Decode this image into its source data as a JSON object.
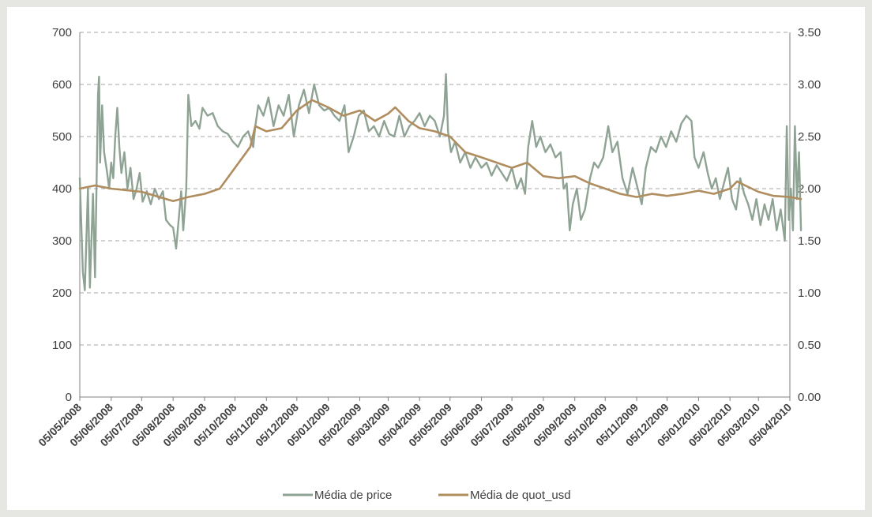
{
  "chart_data": {
    "type": "line",
    "title": "",
    "xlabel": "",
    "ylabel": "",
    "y_left": {
      "range": [
        0,
        700
      ],
      "ticks": [
        "0",
        "100",
        "200",
        "300",
        "400",
        "500",
        "600",
        "700"
      ]
    },
    "y_right": {
      "range": [
        0,
        3.5
      ],
      "ticks": [
        "0.00",
        "0.50",
        "1.00",
        "1.50",
        "2.00",
        "2.50",
        "3.00",
        "3.50"
      ]
    },
    "x_range": [
      "05/05/2008",
      "05/04/2010"
    ],
    "x_ticks": [
      "05/05/2008",
      "05/06/2008",
      "05/07/2008",
      "05/08/2008",
      "05/09/2008",
      "05/10/2008",
      "05/11/2008",
      "05/12/2008",
      "05/01/2009",
      "05/02/2009",
      "05/03/2009",
      "05/04/2009",
      "05/05/2009",
      "05/06/2009",
      "05/07/2009",
      "05/08/2009",
      "05/09/2009",
      "05/10/2009",
      "05/11/2009",
      "05/12/2009",
      "05/01/2010",
      "05/02/2010",
      "05/03/2010",
      "05/04/2010"
    ],
    "grid": "horizontal dashed",
    "legend_position": "bottom",
    "series": [
      {
        "name": "Média de price",
        "axis": "left",
        "color": "#8fa394",
        "points": [
          [
            "05/05/2008",
            420
          ],
          [
            "08/05/2008",
            240
          ],
          [
            "10/05/2008",
            205
          ],
          [
            "13/05/2008",
            400
          ],
          [
            "15/05/2008",
            210
          ],
          [
            "18/05/2008",
            390
          ],
          [
            "20/05/2008",
            230
          ],
          [
            "23/05/2008",
            580
          ],
          [
            "24/05/2008",
            615
          ],
          [
            "25/05/2008",
            450
          ],
          [
            "27/05/2008",
            560
          ],
          [
            "29/05/2008",
            470
          ],
          [
            "01/06/2008",
            430
          ],
          [
            "03/06/2008",
            400
          ],
          [
            "05/06/2008",
            450
          ],
          [
            "07/06/2008",
            420
          ],
          [
            "09/06/2008",
            500
          ],
          [
            "11/06/2008",
            555
          ],
          [
            "13/06/2008",
            480
          ],
          [
            "15/06/2008",
            430
          ],
          [
            "18/06/2008",
            470
          ],
          [
            "21/06/2008",
            400
          ],
          [
            "24/06/2008",
            440
          ],
          [
            "27/06/2008",
            380
          ],
          [
            "30/06/2008",
            400
          ],
          [
            "03/07/2008",
            430
          ],
          [
            "06/07/2008",
            375
          ],
          [
            "10/07/2008",
            395
          ],
          [
            "14/07/2008",
            370
          ],
          [
            "18/07/2008",
            400
          ],
          [
            "22/07/2008",
            380
          ],
          [
            "26/07/2008",
            395
          ],
          [
            "29/07/2008",
            340
          ],
          [
            "02/08/2008",
            330
          ],
          [
            "05/08/2008",
            325
          ],
          [
            "08/08/2008",
            285
          ],
          [
            "10/08/2008",
            330
          ],
          [
            "13/08/2008",
            395
          ],
          [
            "15/08/2008",
            320
          ],
          [
            "18/08/2008",
            400
          ],
          [
            "20/08/2008",
            580
          ],
          [
            "23/08/2008",
            520
          ],
          [
            "27/08/2008",
            530
          ],
          [
            "31/08/2008",
            515
          ],
          [
            "03/09/2008",
            555
          ],
          [
            "08/09/2008",
            540
          ],
          [
            "13/09/2008",
            545
          ],
          [
            "18/09/2008",
            520
          ],
          [
            "23/09/2008",
            510
          ],
          [
            "28/09/2008",
            505
          ],
          [
            "03/10/2008",
            490
          ],
          [
            "08/10/2008",
            480
          ],
          [
            "13/10/2008",
            500
          ],
          [
            "18/10/2008",
            510
          ],
          [
            "23/10/2008",
            480
          ],
          [
            "25/10/2008",
            520
          ],
          [
            "28/10/2008",
            560
          ],
          [
            "02/11/2008",
            540
          ],
          [
            "07/11/2008",
            575
          ],
          [
            "12/11/2008",
            520
          ],
          [
            "17/11/2008",
            560
          ],
          [
            "22/11/2008",
            540
          ],
          [
            "27/11/2008",
            580
          ],
          [
            "02/12/2008",
            500
          ],
          [
            "07/12/2008",
            560
          ],
          [
            "12/12/2008",
            590
          ],
          [
            "17/12/2008",
            545
          ],
          [
            "22/12/2008",
            600
          ],
          [
            "27/12/2008",
            560
          ],
          [
            "01/01/2009",
            550
          ],
          [
            "06/01/2009",
            555
          ],
          [
            "11/01/2009",
            540
          ],
          [
            "16/01/2009",
            530
          ],
          [
            "21/01/2009",
            560
          ],
          [
            "25/01/2009",
            470
          ],
          [
            "30/01/2009",
            500
          ],
          [
            "04/02/2009",
            540
          ],
          [
            "09/02/2009",
            550
          ],
          [
            "14/02/2009",
            510
          ],
          [
            "19/02/2009",
            520
          ],
          [
            "24/02/2009",
            500
          ],
          [
            "01/03/2009",
            530
          ],
          [
            "06/03/2009",
            505
          ],
          [
            "11/03/2009",
            500
          ],
          [
            "16/03/2009",
            540
          ],
          [
            "21/03/2009",
            500
          ],
          [
            "26/03/2009",
            520
          ],
          [
            "31/03/2009",
            530
          ],
          [
            "05/04/2009",
            545
          ],
          [
            "10/04/2009",
            520
          ],
          [
            "15/04/2009",
            540
          ],
          [
            "20/04/2009",
            530
          ],
          [
            "25/04/2009",
            500
          ],
          [
            "29/04/2009",
            540
          ],
          [
            "01/05/2009",
            620
          ],
          [
            "03/05/2009",
            510
          ],
          [
            "06/05/2009",
            470
          ],
          [
            "10/05/2009",
            490
          ],
          [
            "15/05/2009",
            450
          ],
          [
            "20/05/2009",
            470
          ],
          [
            "25/05/2009",
            440
          ],
          [
            "30/05/2009",
            460
          ],
          [
            "05/06/2009",
            440
          ],
          [
            "10/06/2009",
            450
          ],
          [
            "15/06/2009",
            425
          ],
          [
            "20/06/2009",
            445
          ],
          [
            "25/06/2009",
            430
          ],
          [
            "30/06/2009",
            415
          ],
          [
            "05/07/2009",
            440
          ],
          [
            "10/07/2009",
            400
          ],
          [
            "14/07/2009",
            420
          ],
          [
            "18/07/2009",
            390
          ],
          [
            "21/07/2009",
            480
          ],
          [
            "25/07/2009",
            530
          ],
          [
            "29/07/2009",
            480
          ],
          [
            "02/08/2009",
            500
          ],
          [
            "07/08/2009",
            470
          ],
          [
            "12/08/2009",
            485
          ],
          [
            "17/08/2009",
            460
          ],
          [
            "22/08/2009",
            470
          ],
          [
            "25/08/2009",
            400
          ],
          [
            "28/08/2009",
            410
          ],
          [
            "31/08/2009",
            320
          ],
          [
            "03/09/2009",
            370
          ],
          [
            "07/09/2009",
            400
          ],
          [
            "11/09/2009",
            340
          ],
          [
            "15/09/2009",
            360
          ],
          [
            "20/09/2009",
            420
          ],
          [
            "24/09/2009",
            450
          ],
          [
            "28/09/2009",
            440
          ],
          [
            "03/10/2009",
            460
          ],
          [
            "08/10/2009",
            520
          ],
          [
            "12/10/2009",
            470
          ],
          [
            "17/10/2009",
            490
          ],
          [
            "22/10/2009",
            420
          ],
          [
            "27/10/2009",
            390
          ],
          [
            "01/11/2009",
            440
          ],
          [
            "06/11/2009",
            400
          ],
          [
            "10/11/2009",
            370
          ],
          [
            "14/11/2009",
            440
          ],
          [
            "19/11/2009",
            480
          ],
          [
            "24/11/2009",
            470
          ],
          [
            "29/11/2009",
            500
          ],
          [
            "04/12/2009",
            480
          ],
          [
            "09/12/2009",
            510
          ],
          [
            "14/12/2009",
            490
          ],
          [
            "19/12/2009",
            525
          ],
          [
            "24/12/2009",
            540
          ],
          [
            "29/12/2009",
            530
          ],
          [
            "01/01/2010",
            460
          ],
          [
            "05/01/2010",
            440
          ],
          [
            "10/01/2010",
            470
          ],
          [
            "14/01/2010",
            430
          ],
          [
            "18/01/2010",
            400
          ],
          [
            "22/01/2010",
            420
          ],
          [
            "26/01/2010",
            380
          ],
          [
            "30/01/2010",
            410
          ],
          [
            "03/02/2010",
            440
          ],
          [
            "07/02/2010",
            380
          ],
          [
            "11/02/2010",
            360
          ],
          [
            "15/02/2010",
            420
          ],
          [
            "19/02/2010",
            390
          ],
          [
            "23/02/2010",
            370
          ],
          [
            "27/02/2010",
            340
          ],
          [
            "03/03/2010",
            380
          ],
          [
            "07/03/2010",
            330
          ],
          [
            "11/03/2010",
            370
          ],
          [
            "15/03/2010",
            340
          ],
          [
            "19/03/2010",
            380
          ],
          [
            "23/03/2010",
            320
          ],
          [
            "27/03/2010",
            360
          ],
          [
            "31/03/2010",
            300
          ],
          [
            "02/04/2010",
            520
          ],
          [
            "04/04/2010",
            340
          ],
          [
            "06/04/2010",
            400
          ],
          [
            "08/04/2010",
            320
          ],
          [
            "10/04/2010",
            520
          ],
          [
            "12/04/2010",
            380
          ],
          [
            "14/04/2010",
            470
          ],
          [
            "16/04/2010",
            320
          ]
        ]
      },
      {
        "name": "Média de quot_usd",
        "axis": "right",
        "color": "#b08d5f",
        "points": [
          [
            "05/05/2008",
            2.0
          ],
          [
            "20/05/2008",
            2.03
          ],
          [
            "05/06/2008",
            2.0
          ],
          [
            "05/07/2008",
            1.97
          ],
          [
            "05/08/2008",
            1.88
          ],
          [
            "20/08/2008",
            1.92
          ],
          [
            "05/09/2008",
            1.95
          ],
          [
            "20/09/2008",
            2.0
          ],
          [
            "05/10/2008",
            2.2
          ],
          [
            "20/10/2008",
            2.4
          ],
          [
            "25/10/2008",
            2.6
          ],
          [
            "05/11/2008",
            2.55
          ],
          [
            "20/11/2008",
            2.58
          ],
          [
            "05/12/2008",
            2.75
          ],
          [
            "20/12/2008",
            2.85
          ],
          [
            "05/01/2009",
            2.78
          ],
          [
            "20/01/2009",
            2.7
          ],
          [
            "05/02/2009",
            2.75
          ],
          [
            "20/02/2009",
            2.65
          ],
          [
            "05/03/2009",
            2.72
          ],
          [
            "12/03/2009",
            2.78
          ],
          [
            "25/03/2009",
            2.65
          ],
          [
            "05/04/2009",
            2.58
          ],
          [
            "20/04/2009",
            2.55
          ],
          [
            "05/05/2009",
            2.5
          ],
          [
            "20/05/2009",
            2.35
          ],
          [
            "05/06/2009",
            2.3
          ],
          [
            "20/06/2009",
            2.25
          ],
          [
            "05/07/2009",
            2.2
          ],
          [
            "20/07/2009",
            2.25
          ],
          [
            "05/08/2009",
            2.12
          ],
          [
            "20/08/2009",
            2.1
          ],
          [
            "05/09/2009",
            2.12
          ],
          [
            "20/09/2009",
            2.05
          ],
          [
            "05/10/2009",
            2.0
          ],
          [
            "20/10/2009",
            1.95
          ],
          [
            "05/11/2009",
            1.92
          ],
          [
            "20/11/2009",
            1.95
          ],
          [
            "05/12/2009",
            1.93
          ],
          [
            "20/12/2009",
            1.95
          ],
          [
            "05/01/2010",
            1.98
          ],
          [
            "20/01/2010",
            1.95
          ],
          [
            "05/02/2010",
            2.0
          ],
          [
            "12/02/2010",
            2.07
          ],
          [
            "20/02/2010",
            2.03
          ],
          [
            "05/03/2010",
            1.97
          ],
          [
            "20/03/2010",
            1.93
          ],
          [
            "05/04/2010",
            1.92
          ],
          [
            "16/04/2010",
            1.9
          ]
        ]
      }
    ]
  }
}
